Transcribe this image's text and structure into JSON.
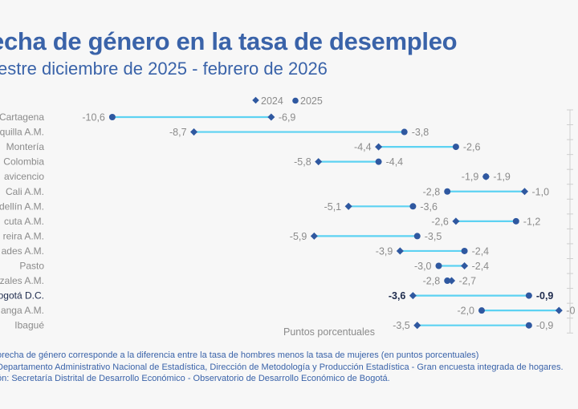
{
  "header": {
    "title": "echa de género en la tasa de desempleo",
    "subtitle": "estre diciembre de 2025 - febrero de 2026"
  },
  "colors": {
    "background": "#f7f7f7",
    "title": "#3a63a9",
    "marker": "#2f58a0",
    "connector": "#5dd2f2",
    "label": "#8b8b8b",
    "highlight": "#1e2b4d"
  },
  "chart_data": {
    "type": "dumbbell",
    "title": "echa de género en la tasa de desempleo",
    "subtitle": "estre diciembre de 2025 - febrero de 2026",
    "xlabel": "Puntos porcentuales",
    "ylabel": "",
    "xlim": [
      -11,
      0
    ],
    "legend": {
      "position": "top-center",
      "entries": [
        {
          "name": "2024",
          "marker": "diamond-icon"
        },
        {
          "name": "2025",
          "marker": "circle-icon"
        }
      ]
    },
    "categories": [
      "Cartagena",
      "quilla A.M.",
      "Montería",
      "Colombia",
      "avicencio",
      "Cali A.M.",
      "dellín A.M.",
      "cuta A.M.",
      "reira A.M.",
      "ades A.M.",
      "Pasto",
      "zales A.M.",
      "ogotá D.C.",
      "anga A.M.",
      "Ibagué"
    ],
    "highlight_category": "ogotá D.C.",
    "series": [
      {
        "name": "2024",
        "values": [
          -6.9,
          -8.7,
          -4.4,
          -5.8,
          -1.9,
          -1.0,
          -5.1,
          -2.6,
          -5.9,
          -3.9,
          -2.4,
          -2.7,
          -3.6,
          -0.2,
          -3.5
        ],
        "labels": [
          "-6,9",
          "-8,7",
          "-4,4",
          "-5,8",
          "-1,9",
          "-1,0",
          "-5,1",
          "-2,6",
          "-5,9",
          "-3,9",
          "-2,4",
          "-2,7",
          "-3,6",
          "-0",
          "-3,5"
        ]
      },
      {
        "name": "2025",
        "values": [
          -10.6,
          -3.8,
          -2.6,
          -4.4,
          -1.9,
          -2.8,
          -3.6,
          -1.2,
          -3.5,
          -2.4,
          -3.0,
          -2.8,
          -0.9,
          -2.0,
          -0.9
        ],
        "labels": [
          "-10,6",
          "-3,8",
          "-2,6",
          "-4,4",
          "-1,9",
          "-2,8",
          "-3,6",
          "-1,2",
          "-3,5",
          "-2,4",
          "-3,0",
          "-2,8",
          "-0,9",
          "-2,0",
          "-0,9"
        ]
      }
    ],
    "grid": false
  },
  "footer": {
    "note": "orecha de género corresponde a la diferencia entre la tasa de hombres menos la tasa de mujeres (en puntos porcentuales)",
    "source": "Departamento Administrativo Nacional de Estadística, Dirección de Metodología y Producción Estadística - Gran encuesta integrada de hogares.",
    "elaboration": "ón: Secretaría Distrital de Desarrollo Económico - Observatorio de Desarrollo Económico de Bogotá."
  }
}
